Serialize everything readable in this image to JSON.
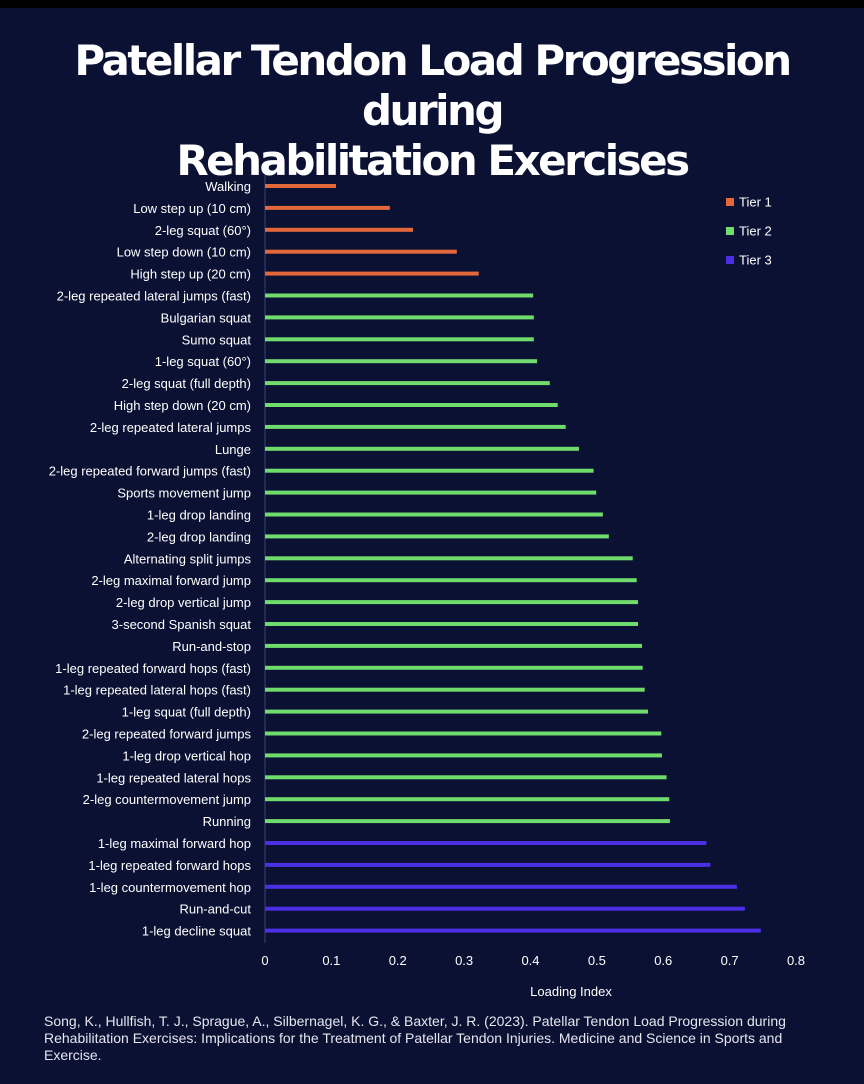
{
  "title_line1": "Patellar Tendon Load Progression during",
  "title_line2": "Rehabilitation Exercises",
  "citation": "Song, K., Hullfish, T. J., Sprague, A., Silbernagel, K. G., & Baxter, J. R. (2023). Patellar Tendon Load Progression during Rehabilitation Exercises: Implications for the Treatment of Patellar Tendon Injuries. Medicine and Science in Sports and Exercise.",
  "colors": {
    "background": "#0b1133",
    "tier1": "#e2673a",
    "tier2": "#70dc6e",
    "tier3": "#4b2fe3"
  },
  "chart_data": {
    "type": "bar",
    "orientation": "horizontal",
    "title": "Patellar Tendon Load Progression during Rehabilitation Exercises",
    "xlabel": "Loading Index",
    "ylabel": "",
    "xlim": [
      0,
      0.8
    ],
    "xticks": [
      "0",
      "0.1",
      "0.2",
      "0.3",
      "0.4",
      "0.5",
      "0.6",
      "0.7",
      "0.8"
    ],
    "grid": false,
    "legend_position": "top-right",
    "legend": [
      {
        "name": "Tier 1",
        "color": "#e2673a"
      },
      {
        "name": "Tier 2",
        "color": "#70dc6e"
      },
      {
        "name": "Tier 3",
        "color": "#4b2fe3"
      }
    ],
    "categories": [
      "Walking",
      "Low step up (10 cm)",
      "2-leg squat (60°)",
      "Low step down (10 cm)",
      "High step up (20 cm)",
      "2-leg repeated lateral jumps (fast)",
      "Bulgarian squat",
      "Sumo squat",
      "1-leg squat (60°)",
      "2-leg squat (full depth)",
      "High step down (20 cm)",
      "2-leg repeated lateral jumps",
      "Lunge",
      "2-leg repeated forward jumps (fast)",
      "Sports movement jump",
      "1-leg drop landing",
      "2-leg drop landing",
      "Alternating split jumps",
      "2-leg maximal forward jump",
      "2-leg drop vertical jump",
      "3-second Spanish squat",
      "Run-and-stop",
      "1-leg repeated forward hops (fast)",
      "1-leg repeated lateral hops (fast)",
      "1-leg squat (full depth)",
      "2-leg repeated forward jumps",
      "1-leg drop vertical hop",
      "1-leg repeated lateral hops",
      "2-leg countermovement jump",
      "Running",
      "1-leg maximal forward hop",
      "1-leg repeated forward hops",
      "1-leg countermovement hop",
      "Run-and-cut",
      "1-leg decline squat"
    ],
    "values": [
      0.107,
      0.188,
      0.223,
      0.289,
      0.322,
      0.404,
      0.405,
      0.405,
      0.41,
      0.429,
      0.441,
      0.453,
      0.473,
      0.495,
      0.499,
      0.509,
      0.518,
      0.554,
      0.56,
      0.562,
      0.562,
      0.568,
      0.569,
      0.572,
      0.577,
      0.597,
      0.598,
      0.605,
      0.609,
      0.61,
      0.665,
      0.671,
      0.711,
      0.723,
      0.747
    ],
    "tiers": [
      1,
      1,
      1,
      1,
      1,
      2,
      2,
      2,
      2,
      2,
      2,
      2,
      2,
      2,
      2,
      2,
      2,
      2,
      2,
      2,
      2,
      2,
      2,
      2,
      2,
      2,
      2,
      2,
      2,
      2,
      3,
      3,
      3,
      3,
      3
    ]
  }
}
